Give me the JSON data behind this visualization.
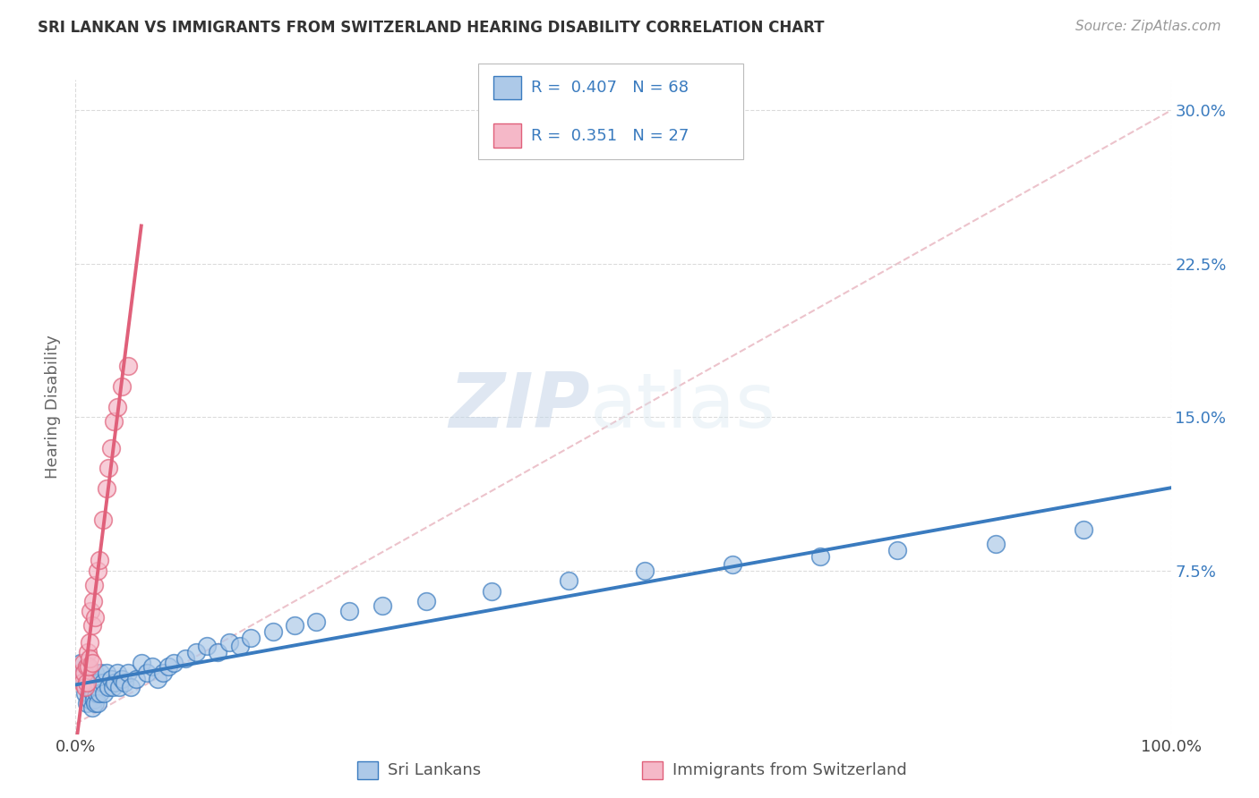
{
  "title": "SRI LANKAN VS IMMIGRANTS FROM SWITZERLAND HEARING DISABILITY CORRELATION CHART",
  "source": "Source: ZipAtlas.com",
  "ylabel": "Hearing Disability",
  "xlim": [
    0.0,
    1.0
  ],
  "ylim": [
    -0.005,
    0.315
  ],
  "legend_r1": "R =  0.407",
  "legend_n1": "N = 68",
  "legend_r2": "R =  0.351",
  "legend_n2": "N = 27",
  "series1_label": "Sri Lankans",
  "series2_label": "Immigrants from Switzerland",
  "series1_color": "#adc9e8",
  "series2_color": "#f5b8c8",
  "series1_line_color": "#3a7bbf",
  "series2_line_color": "#e0607a",
  "watermark_zip": "ZIP",
  "watermark_atlas": "atlas",
  "background_color": "#ffffff",
  "grid_color": "#cccccc",
  "y_tick_vals": [
    0.075,
    0.15,
    0.225,
    0.3
  ],
  "y_tick_labels": [
    "7.5%",
    "15.0%",
    "22.5%",
    "30.0%"
  ],
  "ref_line_color": "#e8b4bf",
  "sri_lankans_x": [
    0.005,
    0.007,
    0.008,
    0.009,
    0.01,
    0.01,
    0.011,
    0.012,
    0.012,
    0.013,
    0.013,
    0.014,
    0.015,
    0.015,
    0.016,
    0.016,
    0.017,
    0.017,
    0.018,
    0.018,
    0.019,
    0.02,
    0.02,
    0.021,
    0.022,
    0.023,
    0.025,
    0.026,
    0.028,
    0.03,
    0.032,
    0.034,
    0.036,
    0.038,
    0.04,
    0.042,
    0.045,
    0.048,
    0.05,
    0.055,
    0.06,
    0.065,
    0.07,
    0.075,
    0.08,
    0.085,
    0.09,
    0.1,
    0.11,
    0.12,
    0.13,
    0.14,
    0.15,
    0.16,
    0.18,
    0.2,
    0.22,
    0.25,
    0.28,
    0.32,
    0.38,
    0.45,
    0.52,
    0.6,
    0.68,
    0.75,
    0.84,
    0.92
  ],
  "sri_lankans_y": [
    0.03,
    0.025,
    0.02,
    0.015,
    0.01,
    0.028,
    0.022,
    0.018,
    0.015,
    0.025,
    0.012,
    0.02,
    0.018,
    0.008,
    0.022,
    0.015,
    0.012,
    0.02,
    0.01,
    0.025,
    0.015,
    0.018,
    0.01,
    0.02,
    0.015,
    0.025,
    0.02,
    0.015,
    0.025,
    0.018,
    0.022,
    0.018,
    0.02,
    0.025,
    0.018,
    0.022,
    0.02,
    0.025,
    0.018,
    0.022,
    0.03,
    0.025,
    0.028,
    0.022,
    0.025,
    0.028,
    0.03,
    0.032,
    0.035,
    0.038,
    0.035,
    0.04,
    0.038,
    0.042,
    0.045,
    0.048,
    0.05,
    0.055,
    0.058,
    0.06,
    0.065,
    0.07,
    0.075,
    0.078,
    0.082,
    0.085,
    0.088,
    0.095
  ],
  "swiss_x": [
    0.005,
    0.006,
    0.007,
    0.008,
    0.009,
    0.01,
    0.01,
    0.011,
    0.012,
    0.013,
    0.013,
    0.014,
    0.015,
    0.015,
    0.016,
    0.017,
    0.018,
    0.02,
    0.022,
    0.025,
    0.028,
    0.03,
    0.032,
    0.035,
    0.038,
    0.042,
    0.048
  ],
  "swiss_y": [
    0.025,
    0.02,
    0.03,
    0.025,
    0.018,
    0.028,
    0.02,
    0.035,
    0.028,
    0.04,
    0.032,
    0.055,
    0.048,
    0.03,
    0.06,
    0.068,
    0.052,
    0.075,
    0.08,
    0.1,
    0.115,
    0.125,
    0.135,
    0.148,
    0.155,
    0.165,
    0.175
  ]
}
